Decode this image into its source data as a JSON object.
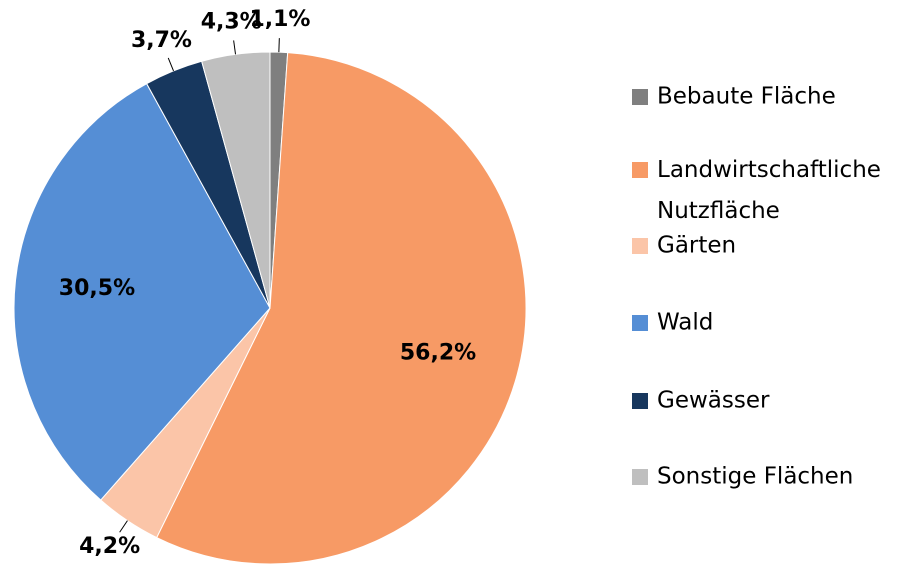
{
  "chart_data": {
    "type": "pie",
    "categories": [
      "Bebaute Fläche",
      "Landwirtschaftliche Nutzfläche",
      "Gärten",
      "Wald",
      "Gewässer",
      "Sonstige Flächen"
    ],
    "values": [
      1.1,
      56.2,
      4.2,
      30.5,
      3.7,
      4.3
    ],
    "value_labels": [
      "1,1%",
      "56,2%",
      "4,2%",
      "30,5%",
      "3,7%",
      "4,3%"
    ],
    "colors": [
      "#7f7f7f",
      "#f79a65",
      "#fbc5a8",
      "#558ed5",
      "#17375e",
      "#bfbfbf"
    ],
    "legend": "right"
  }
}
